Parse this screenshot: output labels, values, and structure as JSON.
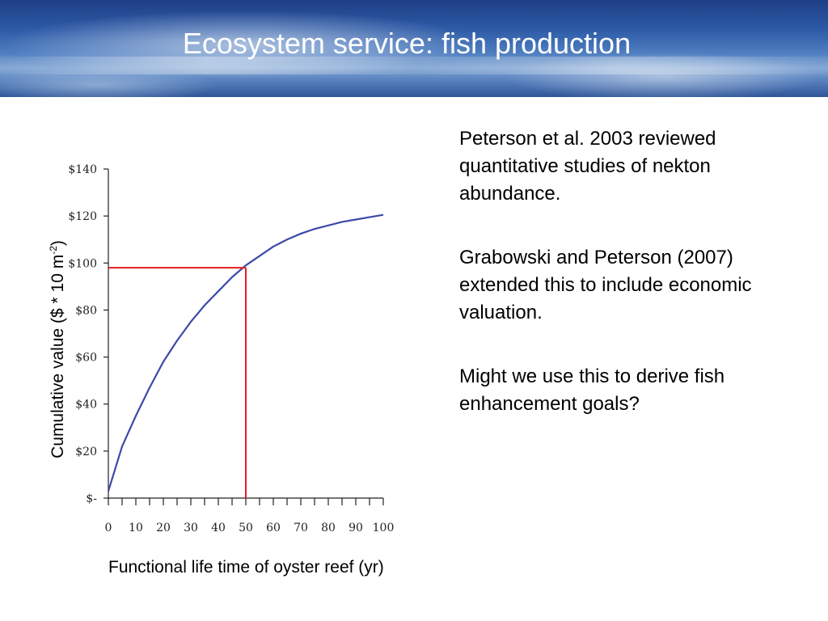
{
  "slide": {
    "title": "Ecosystem service: fish production",
    "notes": [
      "Peterson et al. 2003 reviewed quantitative studies of nekton abundance.",
      "Grabowski and Peterson (2007) extended this to include economic valuation.",
      "Might we use this to derive fish enhancement goals?"
    ]
  },
  "chart_data": {
    "type": "line",
    "title": "",
    "xlabel": "Functional life time of oyster reef (yr)",
    "ylabel": {
      "main": "Cumulative value ($ * 10 m",
      "sup": "-2",
      "close": ")"
    },
    "xlim": [
      0,
      100
    ],
    "ylim": [
      0,
      140
    ],
    "x_ticks": [
      "0",
      "10",
      "20",
      "30",
      "40",
      "50",
      "60",
      "70",
      "80",
      "90",
      "100"
    ],
    "y_ticks": [
      "$-",
      "$20",
      "$40",
      "$60",
      "$80",
      "$100",
      "$120",
      "$140"
    ],
    "x_minor_step": 5,
    "series": [
      {
        "color": "#3b4aa8",
        "x": [
          0,
          5,
          10,
          15,
          20,
          25,
          30,
          35,
          40,
          45,
          50,
          55,
          60,
          65,
          70,
          75,
          80,
          85,
          90,
          95,
          100
        ],
        "y": [
          3,
          22,
          35,
          47,
          58,
          67,
          75,
          82,
          88,
          94,
          99,
          103,
          107,
          110,
          112.5,
          114.5,
          116,
          117.5,
          118.5,
          119.5,
          120.5
        ]
      }
    ],
    "reference_line": {
      "x": 50,
      "y": 98,
      "color": "#e02020"
    }
  }
}
